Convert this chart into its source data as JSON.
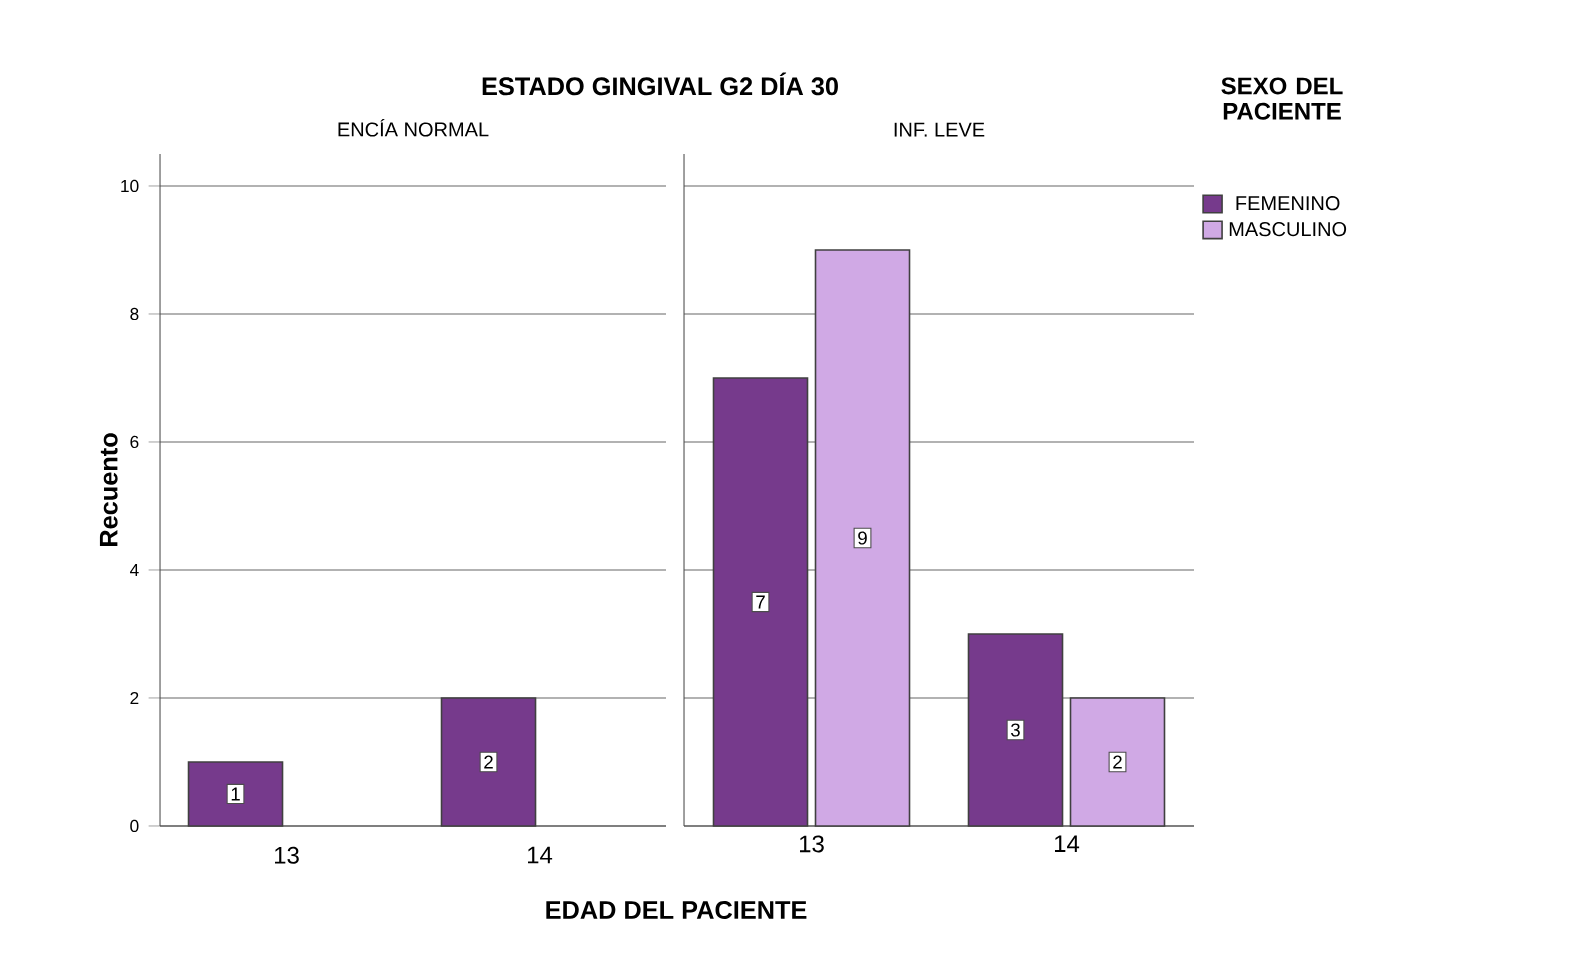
{
  "chart_data": [
    {
      "type": "bar",
      "title": "ESTADO GINGIVAL G2 DÍA 30",
      "subtitle": "ENCÍA NORMAL",
      "xlabel": "EDAD DEL PACIENTE",
      "ylabel": "Recuento",
      "categories": [
        "13",
        "14"
      ],
      "series": [
        {
          "color": "#763a8c",
          "values": [
            1,
            2
          ]
        },
        {
          "color": "#d0a9e5",
          "values": [
            null,
            null
          ]
        }
      ],
      "ylim": [
        0,
        10.5
      ],
      "yticks": [
        0,
        2,
        4,
        6,
        8,
        10
      ],
      "grid": "y",
      "data_labels": true
    },
    {
      "type": "bar",
      "subtitle": "INF. LEVE",
      "legend_title": "SEXO DEL PACIENTE",
      "categories": [
        "13",
        "14"
      ],
      "series": [
        {
          "name": "FEMENINO",
          "color": "#763a8c",
          "values": [
            7,
            3
          ]
        },
        {
          "name": "MASCULINO",
          "color": "#d0a9e5",
          "values": [
            9,
            2
          ]
        }
      ],
      "ylim": [
        0,
        10.5
      ],
      "yticks": [
        0,
        2,
        4,
        6,
        8,
        10
      ],
      "grid": "y",
      "data_labels": true,
      "legend": "top right",
      "tick_labels": "x"
    }
  ]
}
